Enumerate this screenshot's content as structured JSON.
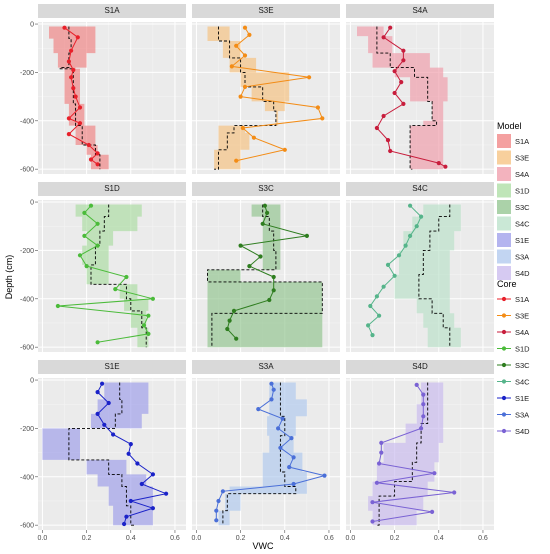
{
  "chart_data": {
    "type": "line",
    "xlabel": "VWC",
    "ylabel": "Depth (cm)",
    "xlim": [
      -0.02,
      0.65
    ],
    "ylim": [
      -620,
      25
    ],
    "x_ticks": [
      "0.0",
      "0.2",
      "0.4",
      "0.6"
    ],
    "x_tick_values": [
      0,
      0.2,
      0.4,
      0.6
    ],
    "y_ticks": [
      "0",
      "-200",
      "-400",
      "-600"
    ],
    "y_tick_values": [
      0,
      -200,
      -400,
      -600
    ],
    "grid": true,
    "legend_placement": "right",
    "legend_model_title": "Model",
    "legend_core_title": "Core",
    "panel_order": [
      "S1A",
      "S3E",
      "S4A",
      "S1D",
      "S3C",
      "S4C",
      "S1E",
      "S3A",
      "S4D"
    ],
    "panels": [
      {
        "name": "S1A",
        "model_color": "#f08080",
        "core_color": "#e8202a",
        "model_depth": [
          -10,
          -60,
          -120,
          -180,
          -185,
          -250,
          -330,
          -420,
          -500,
          -540,
          -600
        ],
        "model_lo": [
          0.03,
          0.05,
          0.07,
          0.08,
          0.1,
          0.1,
          0.12,
          0.15,
          0.2,
          0.22,
          0.22
        ],
        "model_hi": [
          0.24,
          0.24,
          0.2,
          0.15,
          0.17,
          0.17,
          0.19,
          0.24,
          0.25,
          0.3,
          0.3
        ],
        "model_med": [
          0.12,
          0.13,
          0.12,
          0.08,
          0.14,
          0.14,
          0.15,
          0.18,
          0.24,
          0.26,
          0.26
        ],
        "core_depth": [
          -15,
          -55,
          -110,
          -155,
          -190,
          -220,
          -265,
          -300,
          -345,
          -390,
          -410,
          -455,
          -500,
          -535,
          -560,
          -580
        ],
        "core_vwc": [
          0.1,
          0.16,
          0.13,
          0.12,
          0.14,
          0.13,
          0.14,
          0.15,
          0.17,
          0.12,
          0.17,
          0.12,
          0.21,
          0.25,
          0.22,
          0.25
        ]
      },
      {
        "name": "S3E",
        "model_color": "#f6c07c",
        "core_color": "#f38c16",
        "model_depth": [
          -10,
          -70,
          -140,
          -200,
          -260,
          -320,
          -360,
          -420,
          -450,
          -520,
          -600
        ],
        "model_lo": [
          0.05,
          0.12,
          0.15,
          0.2,
          0.25,
          0.31,
          0.36,
          0.1,
          0.1,
          0.08,
          0.08
        ],
        "model_hi": [
          0.15,
          0.2,
          0.27,
          0.42,
          0.42,
          0.4,
          0.37,
          0.22,
          0.24,
          0.2,
          0.2
        ],
        "model_med": [
          0.1,
          0.15,
          0.2,
          0.22,
          0.3,
          0.35,
          0.36,
          0.17,
          0.14,
          0.1,
          0.08
        ],
        "core_depth": [
          -15,
          -45,
          -90,
          -130,
          -175,
          -220,
          -260,
          -300,
          -345,
          -390,
          -430,
          -470,
          -520,
          -565
        ],
        "core_vwc": [
          0.22,
          0.24,
          0.18,
          0.22,
          0.16,
          0.51,
          0.22,
          0.2,
          0.55,
          0.57,
          0.21,
          0.26,
          0.4,
          0.18
        ]
      },
      {
        "name": "S4A",
        "model_color": "#ef9aa8",
        "core_color": "#c81d3c",
        "model_depth": [
          -10,
          -50,
          -120,
          -180,
          -220,
          -260,
          -320,
          -400,
          -420,
          -500,
          -560,
          -600
        ],
        "model_lo": [
          0.03,
          0.08,
          0.1,
          0.2,
          0.27,
          0.27,
          0.37,
          0.33,
          0.27,
          0.27,
          0.27,
          0.28
        ],
        "model_hi": [
          0.15,
          0.19,
          0.36,
          0.42,
          0.44,
          0.44,
          0.42,
          0.42,
          0.42,
          0.42,
          0.42,
          0.44
        ],
        "model_med": [
          0.12,
          0.12,
          0.18,
          0.29,
          0.35,
          0.35,
          0.37,
          0.39,
          0.27,
          0.27,
          0.27,
          0.28
        ],
        "core_depth": [
          -15,
          -55,
          -110,
          -150,
          -195,
          -240,
          -285,
          -330,
          -380,
          -430,
          -480,
          -525,
          -575,
          -590
        ],
        "core_vwc": [
          0.18,
          0.15,
          0.24,
          0.24,
          0.2,
          0.23,
          0.2,
          0.24,
          0.15,
          0.12,
          0.17,
          0.18,
          0.4,
          0.43
        ]
      },
      {
        "name": "S1D",
        "model_color": "#a9dca0",
        "core_color": "#4bbb3a",
        "model_depth": [
          -10,
          -60,
          -120,
          -180,
          -260,
          -340,
          -400,
          -450,
          -520,
          -600
        ],
        "model_lo": [
          0.15,
          0.18,
          0.2,
          0.18,
          0.2,
          0.35,
          0.37,
          0.4,
          0.43,
          0.43
        ],
        "model_hi": [
          0.45,
          0.43,
          0.32,
          0.3,
          0.3,
          0.43,
          0.48,
          0.47,
          0.48,
          0.48
        ],
        "model_med": [
          0.3,
          0.28,
          0.26,
          0.24,
          0.22,
          0.38,
          0.4,
          0.45,
          0.47,
          0.47
        ],
        "core_depth": [
          -15,
          -45,
          -90,
          -140,
          -180,
          -220,
          -265,
          -310,
          -360,
          -400,
          -430,
          -470,
          -510,
          -545,
          -580
        ],
        "core_vwc": [
          0.22,
          0.19,
          0.25,
          0.19,
          0.25,
          0.17,
          0.2,
          0.38,
          0.33,
          0.5,
          0.07,
          0.48,
          0.46,
          0.48,
          0.25
        ]
      },
      {
        "name": "S3C",
        "model_color": "#8fc38c",
        "core_color": "#2e7d1f",
        "model_depth": [
          -10,
          -60,
          -120,
          -200,
          -280,
          -330,
          -380,
          -460,
          -530,
          -600
        ],
        "model_lo": [
          0.25,
          0.3,
          0.3,
          0.3,
          0.05,
          0.05,
          0.05,
          0.05,
          0.05,
          0.05
        ],
        "model_hi": [
          0.38,
          0.38,
          0.38,
          0.38,
          0.2,
          0.57,
          0.57,
          0.57,
          0.57,
          0.57
        ],
        "model_med": [
          0.3,
          0.33,
          0.35,
          0.36,
          0.05,
          0.57,
          0.57,
          0.07,
          0.07,
          0.07
        ],
        "core_depth": [
          -15,
          -45,
          -90,
          -140,
          -180,
          -225,
          -265,
          -310,
          -365,
          -405,
          -450,
          -490,
          -525,
          -565
        ],
        "core_vwc": [
          0.31,
          0.32,
          0.3,
          0.5,
          0.2,
          0.29,
          0.24,
          0.35,
          0.35,
          0.33,
          0.17,
          0.15,
          0.14,
          0.18
        ]
      },
      {
        "name": "S4C",
        "model_color": "#b8e0c8",
        "core_color": "#55b48a",
        "model_depth": [
          -10,
          -60,
          -120,
          -200,
          -300,
          -400,
          -460,
          -520,
          -600
        ],
        "model_lo": [
          0.33,
          0.28,
          0.24,
          0.22,
          0.2,
          0.3,
          0.33,
          0.35,
          0.35
        ],
        "model_hi": [
          0.5,
          0.5,
          0.47,
          0.45,
          0.45,
          0.45,
          0.47,
          0.5,
          0.5
        ],
        "model_med": [
          0.45,
          0.4,
          0.36,
          0.33,
          0.31,
          0.37,
          0.42,
          0.45,
          0.45
        ],
        "core_depth": [
          -15,
          -60,
          -100,
          -140,
          -180,
          -220,
          -260,
          -305,
          -350,
          -390,
          -430,
          -470,
          -510,
          -550
        ],
        "core_vwc": [
          0.27,
          0.32,
          0.3,
          0.27,
          0.25,
          0.22,
          0.17,
          0.2,
          0.15,
          0.12,
          0.09,
          0.13,
          0.08,
          0.1
        ]
      },
      {
        "name": "S1E",
        "model_color": "#9b9bea",
        "core_color": "#1a22c8",
        "model_depth": [
          -10,
          -80,
          -140,
          -200,
          -260,
          -330,
          -390,
          -440,
          -520,
          -600
        ],
        "model_lo": [
          0.28,
          0.25,
          0.22,
          0.0,
          0.0,
          0.2,
          0.25,
          0.3,
          0.32,
          0.38
        ],
        "model_hi": [
          0.48,
          0.48,
          0.45,
          0.17,
          0.17,
          0.38,
          0.47,
          0.5,
          0.5,
          0.52
        ],
        "model_med": [
          0.35,
          0.36,
          0.33,
          0.12,
          0.12,
          0.3,
          0.36,
          0.38,
          0.4,
          0.42
        ],
        "core_depth": [
          -15,
          -50,
          -95,
          -140,
          -185,
          -225,
          -265,
          -305,
          -345,
          -390,
          -430,
          -470,
          -500,
          -530,
          -565,
          -595
        ],
        "core_vwc": [
          0.27,
          0.25,
          0.3,
          0.25,
          0.28,
          0.32,
          0.4,
          0.39,
          0.43,
          0.5,
          0.45,
          0.56,
          0.4,
          0.5,
          0.38,
          0.37
        ]
      },
      {
        "name": "S3A",
        "model_color": "#aec7ee",
        "core_color": "#4a6fd8",
        "model_depth": [
          -10,
          -80,
          -150,
          -230,
          -300,
          -380,
          -440,
          -470,
          -540,
          -600
        ],
        "model_lo": [
          0.33,
          0.33,
          0.32,
          0.33,
          0.3,
          0.3,
          0.15,
          0.13,
          0.1,
          0.1
        ],
        "model_hi": [
          0.45,
          0.5,
          0.45,
          0.44,
          0.48,
          0.5,
          0.5,
          0.2,
          0.15,
          0.15
        ],
        "model_med": [
          0.38,
          0.38,
          0.4,
          0.38,
          0.38,
          0.4,
          0.45,
          0.14,
          0.12,
          0.12
        ],
        "core_depth": [
          -15,
          -40,
          -80,
          -120,
          -160,
          -200,
          -240,
          -280,
          -320,
          -360,
          -395,
          -430,
          -460,
          -500,
          -540,
          -580
        ],
        "core_vwc": [
          0.34,
          0.35,
          0.34,
          0.28,
          0.39,
          0.37,
          0.43,
          0.38,
          0.44,
          0.42,
          0.58,
          0.44,
          0.12,
          0.1,
          0.09,
          0.09
        ]
      },
      {
        "name": "S4D",
        "model_color": "#c8b8ee",
        "core_color": "#7a62d4",
        "model_depth": [
          -10,
          -100,
          -180,
          -260,
          -340,
          -420,
          -480,
          -540,
          -600
        ],
        "model_lo": [
          0.32,
          0.3,
          0.25,
          0.15,
          0.12,
          0.1,
          0.08,
          0.1,
          0.1
        ],
        "model_hi": [
          0.42,
          0.42,
          0.42,
          0.4,
          0.38,
          0.35,
          0.33,
          0.3,
          0.3
        ],
        "model_med": [
          0.35,
          0.35,
          0.32,
          0.3,
          0.28,
          0.2,
          0.13,
          0.13,
          0.12
        ],
        "core_depth": [
          -20,
          -60,
          -100,
          -150,
          -200,
          -260,
          -300,
          -345,
          -385,
          -425,
          -465,
          -505,
          -545,
          -585
        ],
        "core_vwc": [
          0.3,
          0.33,
          0.33,
          0.33,
          0.32,
          0.14,
          0.14,
          0.13,
          0.38,
          0.12,
          0.47,
          0.1,
          0.37,
          0.1
        ]
      }
    ]
  }
}
